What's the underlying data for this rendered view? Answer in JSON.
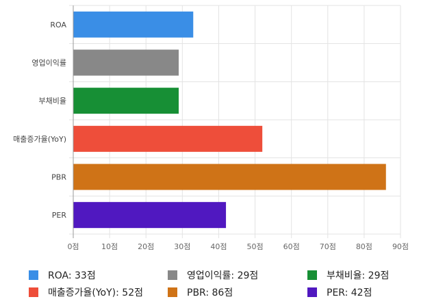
{
  "chart_data": {
    "type": "bar",
    "orientation": "horizontal",
    "categories": [
      "ROA",
      "영업이익률",
      "부채비율",
      "매출증가율(YoY)",
      "PBR",
      "PER"
    ],
    "values": [
      33,
      29,
      29,
      52,
      86,
      42
    ],
    "colors": [
      "#3a8ee6",
      "#888888",
      "#178f35",
      "#ee4e3a",
      "#cf7317",
      "#5018c0"
    ],
    "xlim": [
      0,
      90
    ],
    "xticks": [
      "0점",
      "10점",
      "20점",
      "30점",
      "40점",
      "50점",
      "60점",
      "70점",
      "80점",
      "90점"
    ],
    "grid": true,
    "legend_position": "bottom",
    "legend": [
      "ROA: 33점",
      "영업이익률: 29점",
      "부채비율: 29점",
      "매출증가율(YoY): 52점",
      "PBR: 86점",
      "PER: 42점"
    ]
  }
}
